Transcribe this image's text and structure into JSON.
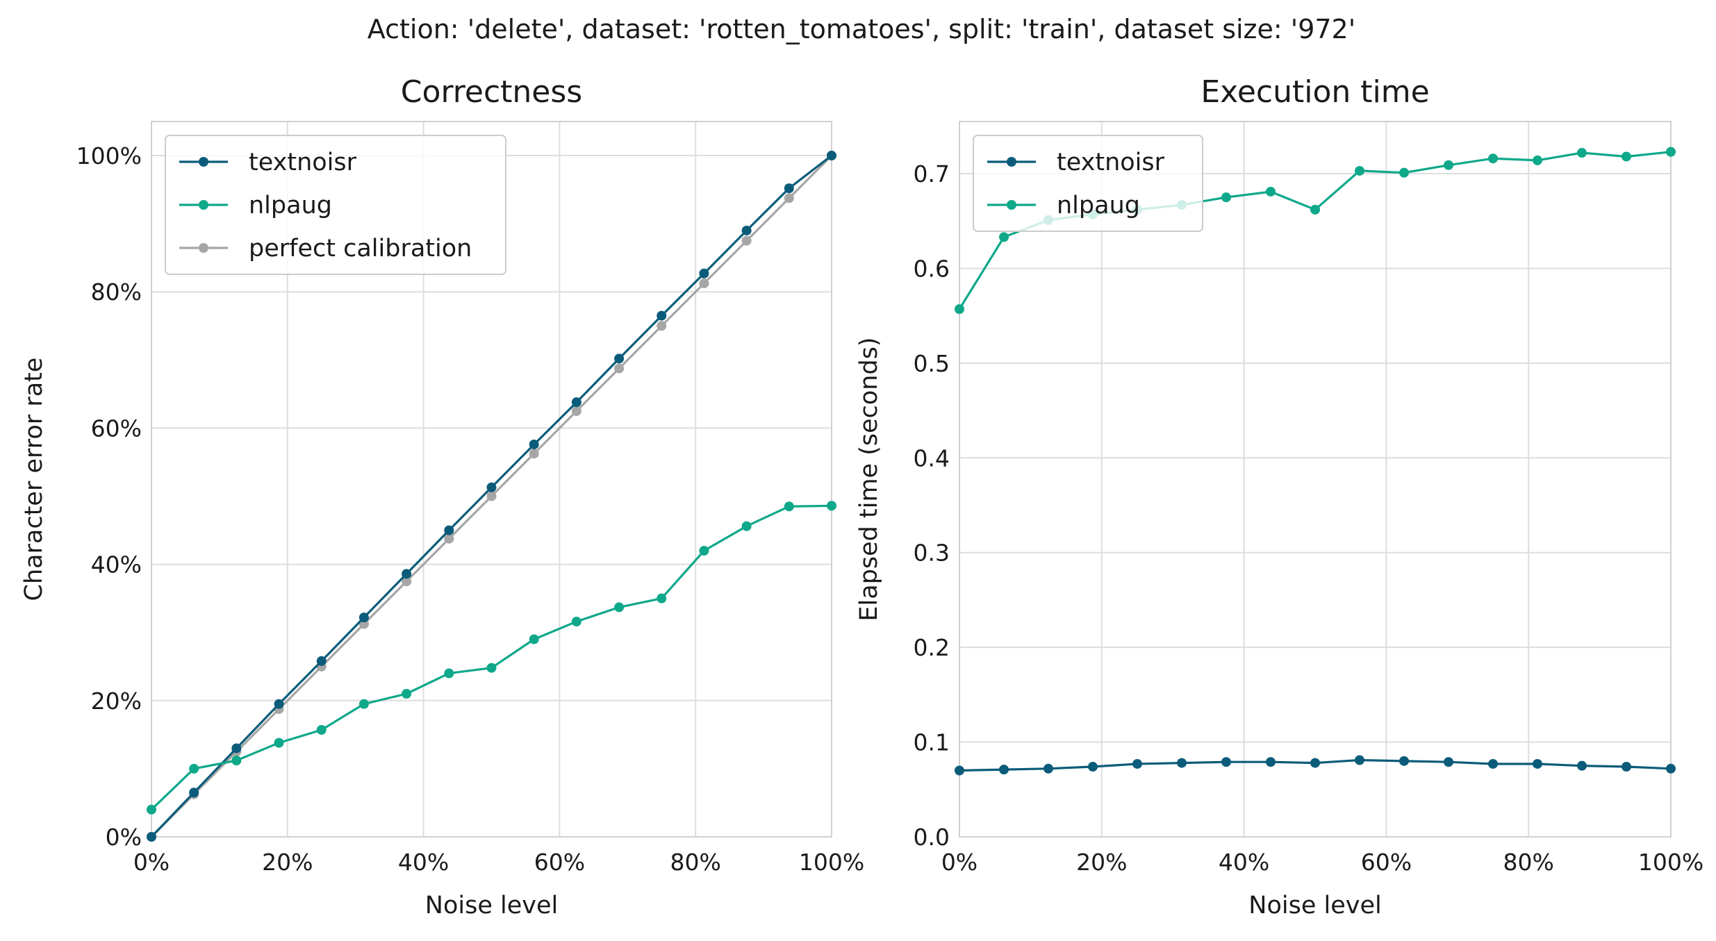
{
  "figure": {
    "suptitle": "Action: 'delete', dataset: 'rotten_tomatoes', split: 'train', dataset size: '972'"
  },
  "colors": {
    "textnoisr": "#0b5c7a",
    "nlpaug": "#0fa88a",
    "perfect_calibration": "#a6a6a6",
    "grid": "#dddddd",
    "spine": "#d0d0d0"
  },
  "chart_data": [
    {
      "type": "line",
      "title": "Correctness",
      "xlabel": "Noise level",
      "ylabel": "Character error rate",
      "xlim": [
        0,
        1
      ],
      "ylim": [
        0,
        1.05
      ],
      "x_ticks": [
        0,
        0.2,
        0.4,
        0.6,
        0.8,
        1.0
      ],
      "x_tick_labels": [
        "0%",
        "20%",
        "40%",
        "60%",
        "80%",
        "100%"
      ],
      "y_ticks": [
        0,
        0.2,
        0.4,
        0.6,
        0.8,
        1.0
      ],
      "y_tick_labels": [
        "0%",
        "20%",
        "40%",
        "60%",
        "80%",
        "100%"
      ],
      "grid": true,
      "legend": "upper left",
      "x": [
        0,
        0.0625,
        0.125,
        0.1875,
        0.25,
        0.3125,
        0.375,
        0.4375,
        0.5,
        0.5625,
        0.625,
        0.6875,
        0.75,
        0.8125,
        0.875,
        0.9375,
        1.0
      ],
      "series": [
        {
          "name": "textnoisr",
          "color_key": "textnoisr",
          "values": [
            0.0,
            0.065,
            0.13,
            0.195,
            0.258,
            0.322,
            0.386,
            0.45,
            0.513,
            0.576,
            0.638,
            0.702,
            0.765,
            0.827,
            0.89,
            0.952,
            1.0
          ]
        },
        {
          "name": "nlpaug",
          "color_key": "nlpaug",
          "values": [
            0.04,
            0.1,
            0.112,
            0.138,
            0.157,
            0.195,
            0.21,
            0.24,
            0.248,
            0.29,
            0.316,
            0.337,
            0.35,
            0.42,
            0.456,
            0.485,
            0.486
          ]
        },
        {
          "name": "perfect calibration",
          "color_key": "perfect_calibration",
          "values": [
            0,
            0.0625,
            0.125,
            0.1875,
            0.25,
            0.3125,
            0.375,
            0.4375,
            0.5,
            0.5625,
            0.625,
            0.6875,
            0.75,
            0.8125,
            0.875,
            0.9375,
            1.0
          ]
        }
      ]
    },
    {
      "type": "line",
      "title": "Execution time",
      "xlabel": "Noise level",
      "ylabel": "Elapsed time (seconds)",
      "xlim": [
        0,
        1
      ],
      "ylim": [
        0,
        0.755
      ],
      "x_ticks": [
        0,
        0.2,
        0.4,
        0.6,
        0.8,
        1.0
      ],
      "x_tick_labels": [
        "0%",
        "20%",
        "40%",
        "60%",
        "80%",
        "100%"
      ],
      "y_ticks": [
        0.0,
        0.1,
        0.2,
        0.3,
        0.4,
        0.5,
        0.6,
        0.7
      ],
      "y_tick_labels": [
        "0.0",
        "0.1",
        "0.2",
        "0.3",
        "0.4",
        "0.5",
        "0.6",
        "0.7"
      ],
      "grid": true,
      "legend": "upper left",
      "x": [
        0,
        0.0625,
        0.125,
        0.1875,
        0.25,
        0.3125,
        0.375,
        0.4375,
        0.5,
        0.5625,
        0.625,
        0.6875,
        0.75,
        0.8125,
        0.875,
        0.9375,
        1.0
      ],
      "series": [
        {
          "name": "textnoisr",
          "color_key": "textnoisr",
          "values": [
            0.07,
            0.071,
            0.072,
            0.074,
            0.077,
            0.078,
            0.079,
            0.079,
            0.078,
            0.081,
            0.08,
            0.079,
            0.077,
            0.077,
            0.075,
            0.074,
            0.072
          ]
        },
        {
          "name": "nlpaug",
          "color_key": "nlpaug",
          "values": [
            0.557,
            0.633,
            0.651,
            0.657,
            0.662,
            0.667,
            0.675,
            0.681,
            0.662,
            0.703,
            0.701,
            0.709,
            0.716,
            0.714,
            0.722,
            0.718,
            0.723
          ]
        }
      ]
    }
  ]
}
